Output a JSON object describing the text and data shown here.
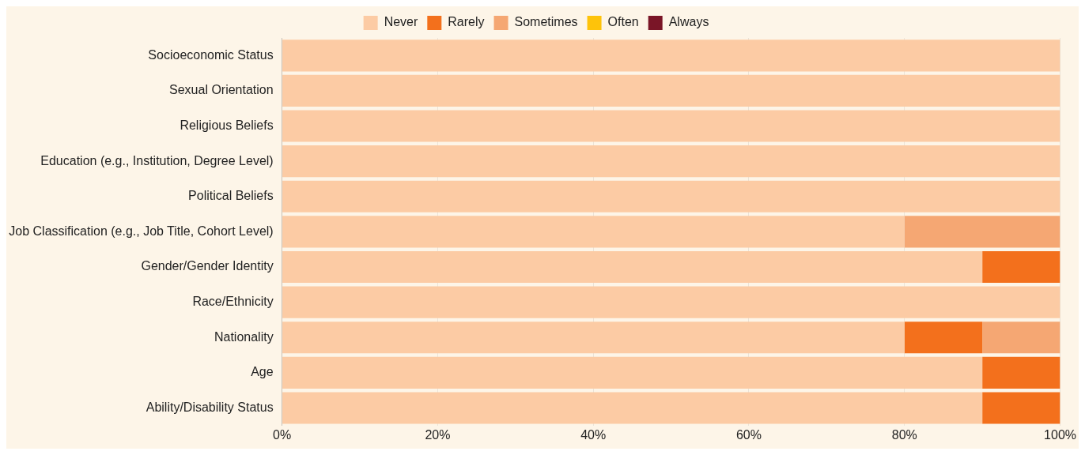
{
  "chart_data": {
    "type": "bar",
    "orientation": "horizontal",
    "stacked": true,
    "categories": [
      "Socioeconomic Status",
      "Sexual Orientation",
      "Religious Beliefs",
      "Education (e.g., Institution, Degree Level)",
      "Political Beliefs",
      "Job Classification (e.g., Job Title, Cohort Level)",
      "Gender/Gender Identity",
      "Race/Ethnicity",
      "Nationality",
      "Age",
      "Ability/Disability Status"
    ],
    "series": [
      {
        "name": "Never",
        "color": "#fccba4",
        "values": [
          100,
          100,
          100,
          100,
          100,
          80,
          90,
          100,
          80,
          90,
          90
        ]
      },
      {
        "name": "Rarely",
        "color": "#f3701c",
        "values": [
          0,
          0,
          0,
          0,
          0,
          0,
          10,
          0,
          10,
          10,
          10
        ]
      },
      {
        "name": "Sometimes",
        "color": "#f5a773",
        "values": [
          0,
          0,
          0,
          0,
          0,
          20,
          0,
          0,
          10,
          0,
          0
        ]
      },
      {
        "name": "Often",
        "color": "#fec30a",
        "values": [
          0,
          0,
          0,
          0,
          0,
          0,
          0,
          0,
          0,
          0,
          0
        ]
      },
      {
        "name": "Always",
        "color": "#7a1527",
        "values": [
          0,
          0,
          0,
          0,
          0,
          0,
          0,
          0,
          0,
          0,
          0
        ]
      }
    ],
    "xlim": [
      0,
      100
    ],
    "xticks": [
      {
        "value": 0,
        "label": "0%"
      },
      {
        "value": 20,
        "label": "20%"
      },
      {
        "value": 40,
        "label": "40%"
      },
      {
        "value": 60,
        "label": "60%"
      },
      {
        "value": 80,
        "label": "80%"
      },
      {
        "value": 100,
        "label": "100%"
      }
    ],
    "grid": "x",
    "legend": "top"
  }
}
